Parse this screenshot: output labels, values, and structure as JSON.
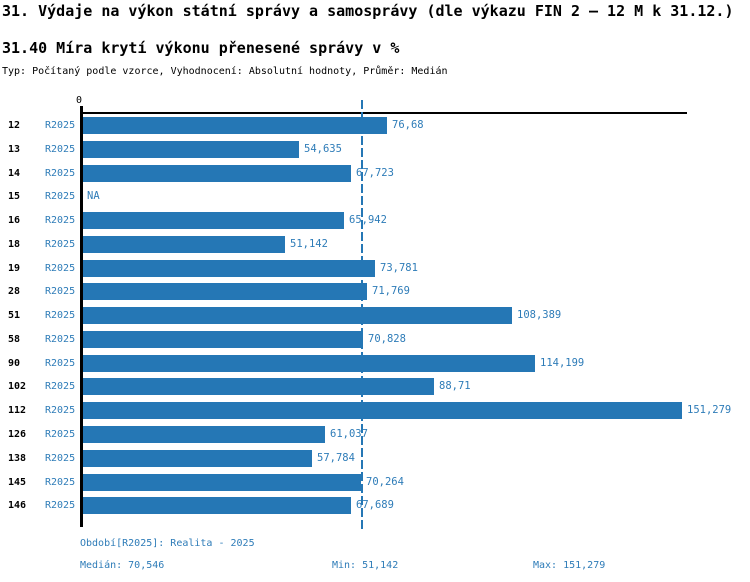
{
  "header": {
    "title": "31. Výdaje na výkon státní správy a samosprávy (dle výkazu FIN 2 – 12 M k 31.12.)",
    "subtitle": "31.40 Míra krytí výkonu přenesené správy v %",
    "meta": "Typ: Počítaný podle vzorce, Vyhodnocení: Absolutní hodnoty, Průměr: Medián"
  },
  "chart_data": {
    "type": "bar",
    "orientation": "horizontal",
    "axis_zero_label": "0",
    "series_label": "R2025",
    "categories": [
      "12",
      "13",
      "14",
      "15",
      "16",
      "18",
      "19",
      "28",
      "51",
      "58",
      "90",
      "102",
      "112",
      "126",
      "138",
      "145",
      "146"
    ],
    "values": [
      76.68,
      54.635,
      67.723,
      null,
      65.942,
      51.142,
      73.781,
      71.769,
      108.389,
      70.828,
      114.199,
      88.71,
      151.279,
      61.037,
      57.784,
      70.264,
      67.689
    ],
    "value_labels": [
      "76,68",
      "54,635",
      "67,723",
      "NA",
      "65,942",
      "51,142",
      "73,781",
      "71,769",
      "108,389",
      "70,828",
      "114,199",
      "88,71",
      "151,279",
      "61,037",
      "57,784",
      "70,264",
      "67,689"
    ],
    "median": 70.546,
    "min": 51.142,
    "max": 151.279,
    "xlim": [
      0,
      152.6
    ],
    "grid": false,
    "legend_position": "none",
    "bar_color": "#2577b5",
    "median_line_color": "#2577b5",
    "value_text_color": "#2e7cb8"
  },
  "footer": {
    "period": "Období[R2025]: Realita - 2025",
    "median": "Medián: 70,546",
    "min": "Min: 51,142",
    "max": "Max: 151,279"
  }
}
